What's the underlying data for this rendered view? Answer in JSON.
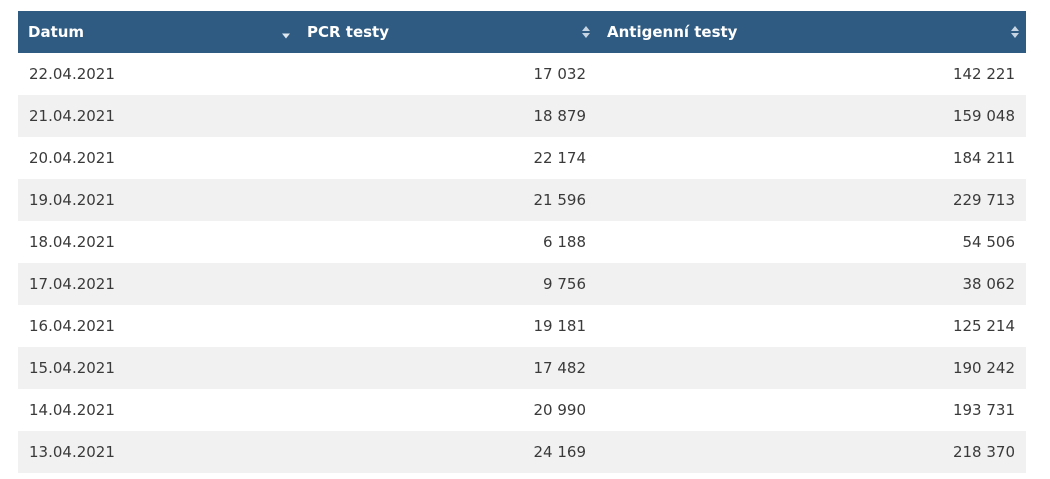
{
  "table": {
    "columns": [
      {
        "label": "Datum",
        "sort": "desc"
      },
      {
        "label": "PCR testy",
        "sort": "none"
      },
      {
        "label": "Antigenní testy",
        "sort": "none"
      }
    ],
    "rows": [
      {
        "date": "22.04.2021",
        "pcr": "17 032",
        "antigen": "142 221"
      },
      {
        "date": "21.04.2021",
        "pcr": "18 879",
        "antigen": "159 048"
      },
      {
        "date": "20.04.2021",
        "pcr": "22 174",
        "antigen": "184 211"
      },
      {
        "date": "19.04.2021",
        "pcr": "21 596",
        "antigen": "229 713"
      },
      {
        "date": "18.04.2021",
        "pcr": "6 188",
        "antigen": "54 506"
      },
      {
        "date": "17.04.2021",
        "pcr": "9 756",
        "antigen": "38 062"
      },
      {
        "date": "16.04.2021",
        "pcr": "19 181",
        "antigen": "125 214"
      },
      {
        "date": "15.04.2021",
        "pcr": "17 482",
        "antigen": "190 242"
      },
      {
        "date": "14.04.2021",
        "pcr": "20 990",
        "antigen": "193 731"
      },
      {
        "date": "13.04.2021",
        "pcr": "24 169",
        "antigen": "218 370"
      }
    ]
  },
  "icons": {
    "sort_desc": "sort-desc-icon",
    "sort_both": "sort-both-icon"
  },
  "colors": {
    "header_bg": "#2f5b83",
    "header_text": "#ffffff",
    "row_alt_bg": "#f1f1f1"
  }
}
